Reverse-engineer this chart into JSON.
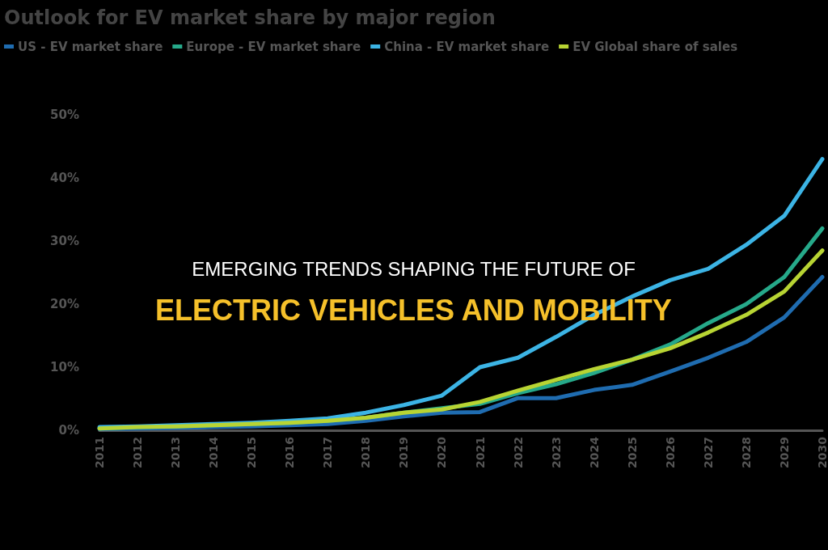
{
  "chart_data": {
    "type": "line",
    "title": "Outlook for EV market share by major region",
    "annotations": [
      "EMERGING TRENDS SHAPING THE FUTURE OF",
      "ELECTRIC VEHICLES AND MOBILITY"
    ],
    "categories": [
      "2011",
      "2012",
      "2013",
      "2014",
      "2015",
      "2016",
      "2017",
      "2018",
      "2019",
      "2020",
      "2021",
      "2022",
      "2023",
      "2024",
      "2025",
      "2026",
      "2027",
      "2028",
      "2029",
      "2030"
    ],
    "series": [
      {
        "name": "US - EV market share",
        "color": "#1f6cb0",
        "values": [
          0.2,
          0.3,
          0.4,
          0.5,
          0.6,
          0.8,
          1.0,
          1.5,
          2.2,
          2.8,
          2.9,
          5.1,
          5.1,
          6.4,
          7.2,
          9.3,
          11.5,
          14,
          17.9,
          24.3
        ]
      },
      {
        "name": "Europe - EV market share",
        "color": "#26a98a",
        "values": [
          0.3,
          0.5,
          0.6,
          0.8,
          1.0,
          1.2,
          1.5,
          2.0,
          2.8,
          3.5,
          4.2,
          5.9,
          7.3,
          9.1,
          11.2,
          13.6,
          17,
          20,
          24.3,
          32
        ]
      },
      {
        "name": "China - EV market share",
        "color": "#3cb4e5",
        "values": [
          0.5,
          0.6,
          0.8,
          1.0,
          1.2,
          1.5,
          1.9,
          2.8,
          4.0,
          5.5,
          10.0,
          11.5,
          14.8,
          18.3,
          21.2,
          23.8,
          25.6,
          29.4,
          34,
          43
        ]
      },
      {
        "name": "EV Global share of sales",
        "color": "#b8d433",
        "values": [
          0.3,
          0.5,
          0.6,
          0.8,
          1.0,
          1.2,
          1.5,
          2.0,
          2.8,
          3.3,
          4.5,
          6.3,
          8,
          9.7,
          11.2,
          13,
          15.5,
          18.3,
          22,
          28.5
        ]
      }
    ],
    "ylim": [
      0,
      50
    ],
    "yticks": [
      {
        "value": 0,
        "label": "0%"
      },
      {
        "value": 10,
        "label": "10%"
      },
      {
        "value": 20,
        "label": "20%"
      },
      {
        "value": 30,
        "label": "30%"
      },
      {
        "value": 40,
        "label": "40%"
      },
      {
        "value": 50,
        "label": "50%"
      }
    ],
    "grid": false,
    "legend": "top left",
    "marker": "none",
    "line_style": "solid"
  }
}
